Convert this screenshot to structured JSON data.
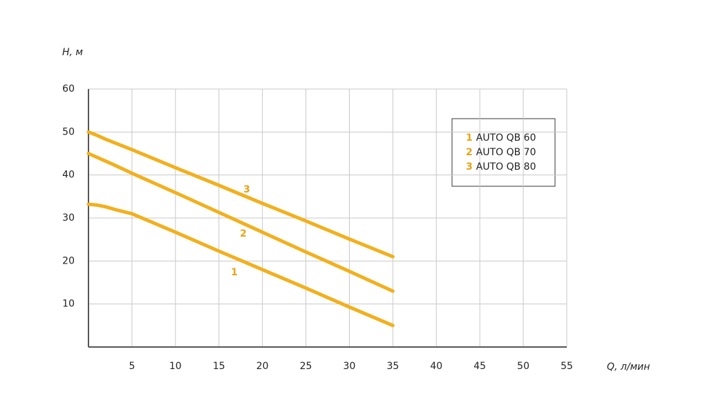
{
  "chart_data": {
    "type": "line",
    "y_label": "H, м",
    "x_label": "Q, л/мин",
    "x": [
      0,
      1,
      2,
      3,
      5,
      10,
      15,
      20,
      25,
      30,
      35
    ],
    "series": [
      {
        "label": "1",
        "name": "AUTO QB 60",
        "color": "#f2b01e",
        "values": [
          33.2,
          33.0,
          32.6,
          32.0,
          31,
          26.7,
          22.3,
          18,
          13.7,
          9.3,
          5
        ]
      },
      {
        "label": "2",
        "name": "AUTO QB 70",
        "color": "#f2b01e",
        "values": [
          45,
          44.1,
          43.2,
          42.3,
          40.4,
          35.9,
          31.3,
          26.7,
          22.1,
          17.6,
          13
        ]
      },
      {
        "label": "3",
        "name": "AUTO QB 80",
        "color": "#f2b01e",
        "values": [
          50,
          49.2,
          48.3,
          47.5,
          45.9,
          41.7,
          37.6,
          33.4,
          29.3,
          25.1,
          21
        ]
      }
    ],
    "xlim": [
      0,
      55
    ],
    "xticks": [
      5,
      10,
      15,
      20,
      25,
      30,
      35,
      40,
      45,
      50,
      55
    ],
    "ylim": [
      0,
      60
    ],
    "yticks": [
      10,
      20,
      30,
      40,
      50,
      60
    ],
    "grid": true
  }
}
